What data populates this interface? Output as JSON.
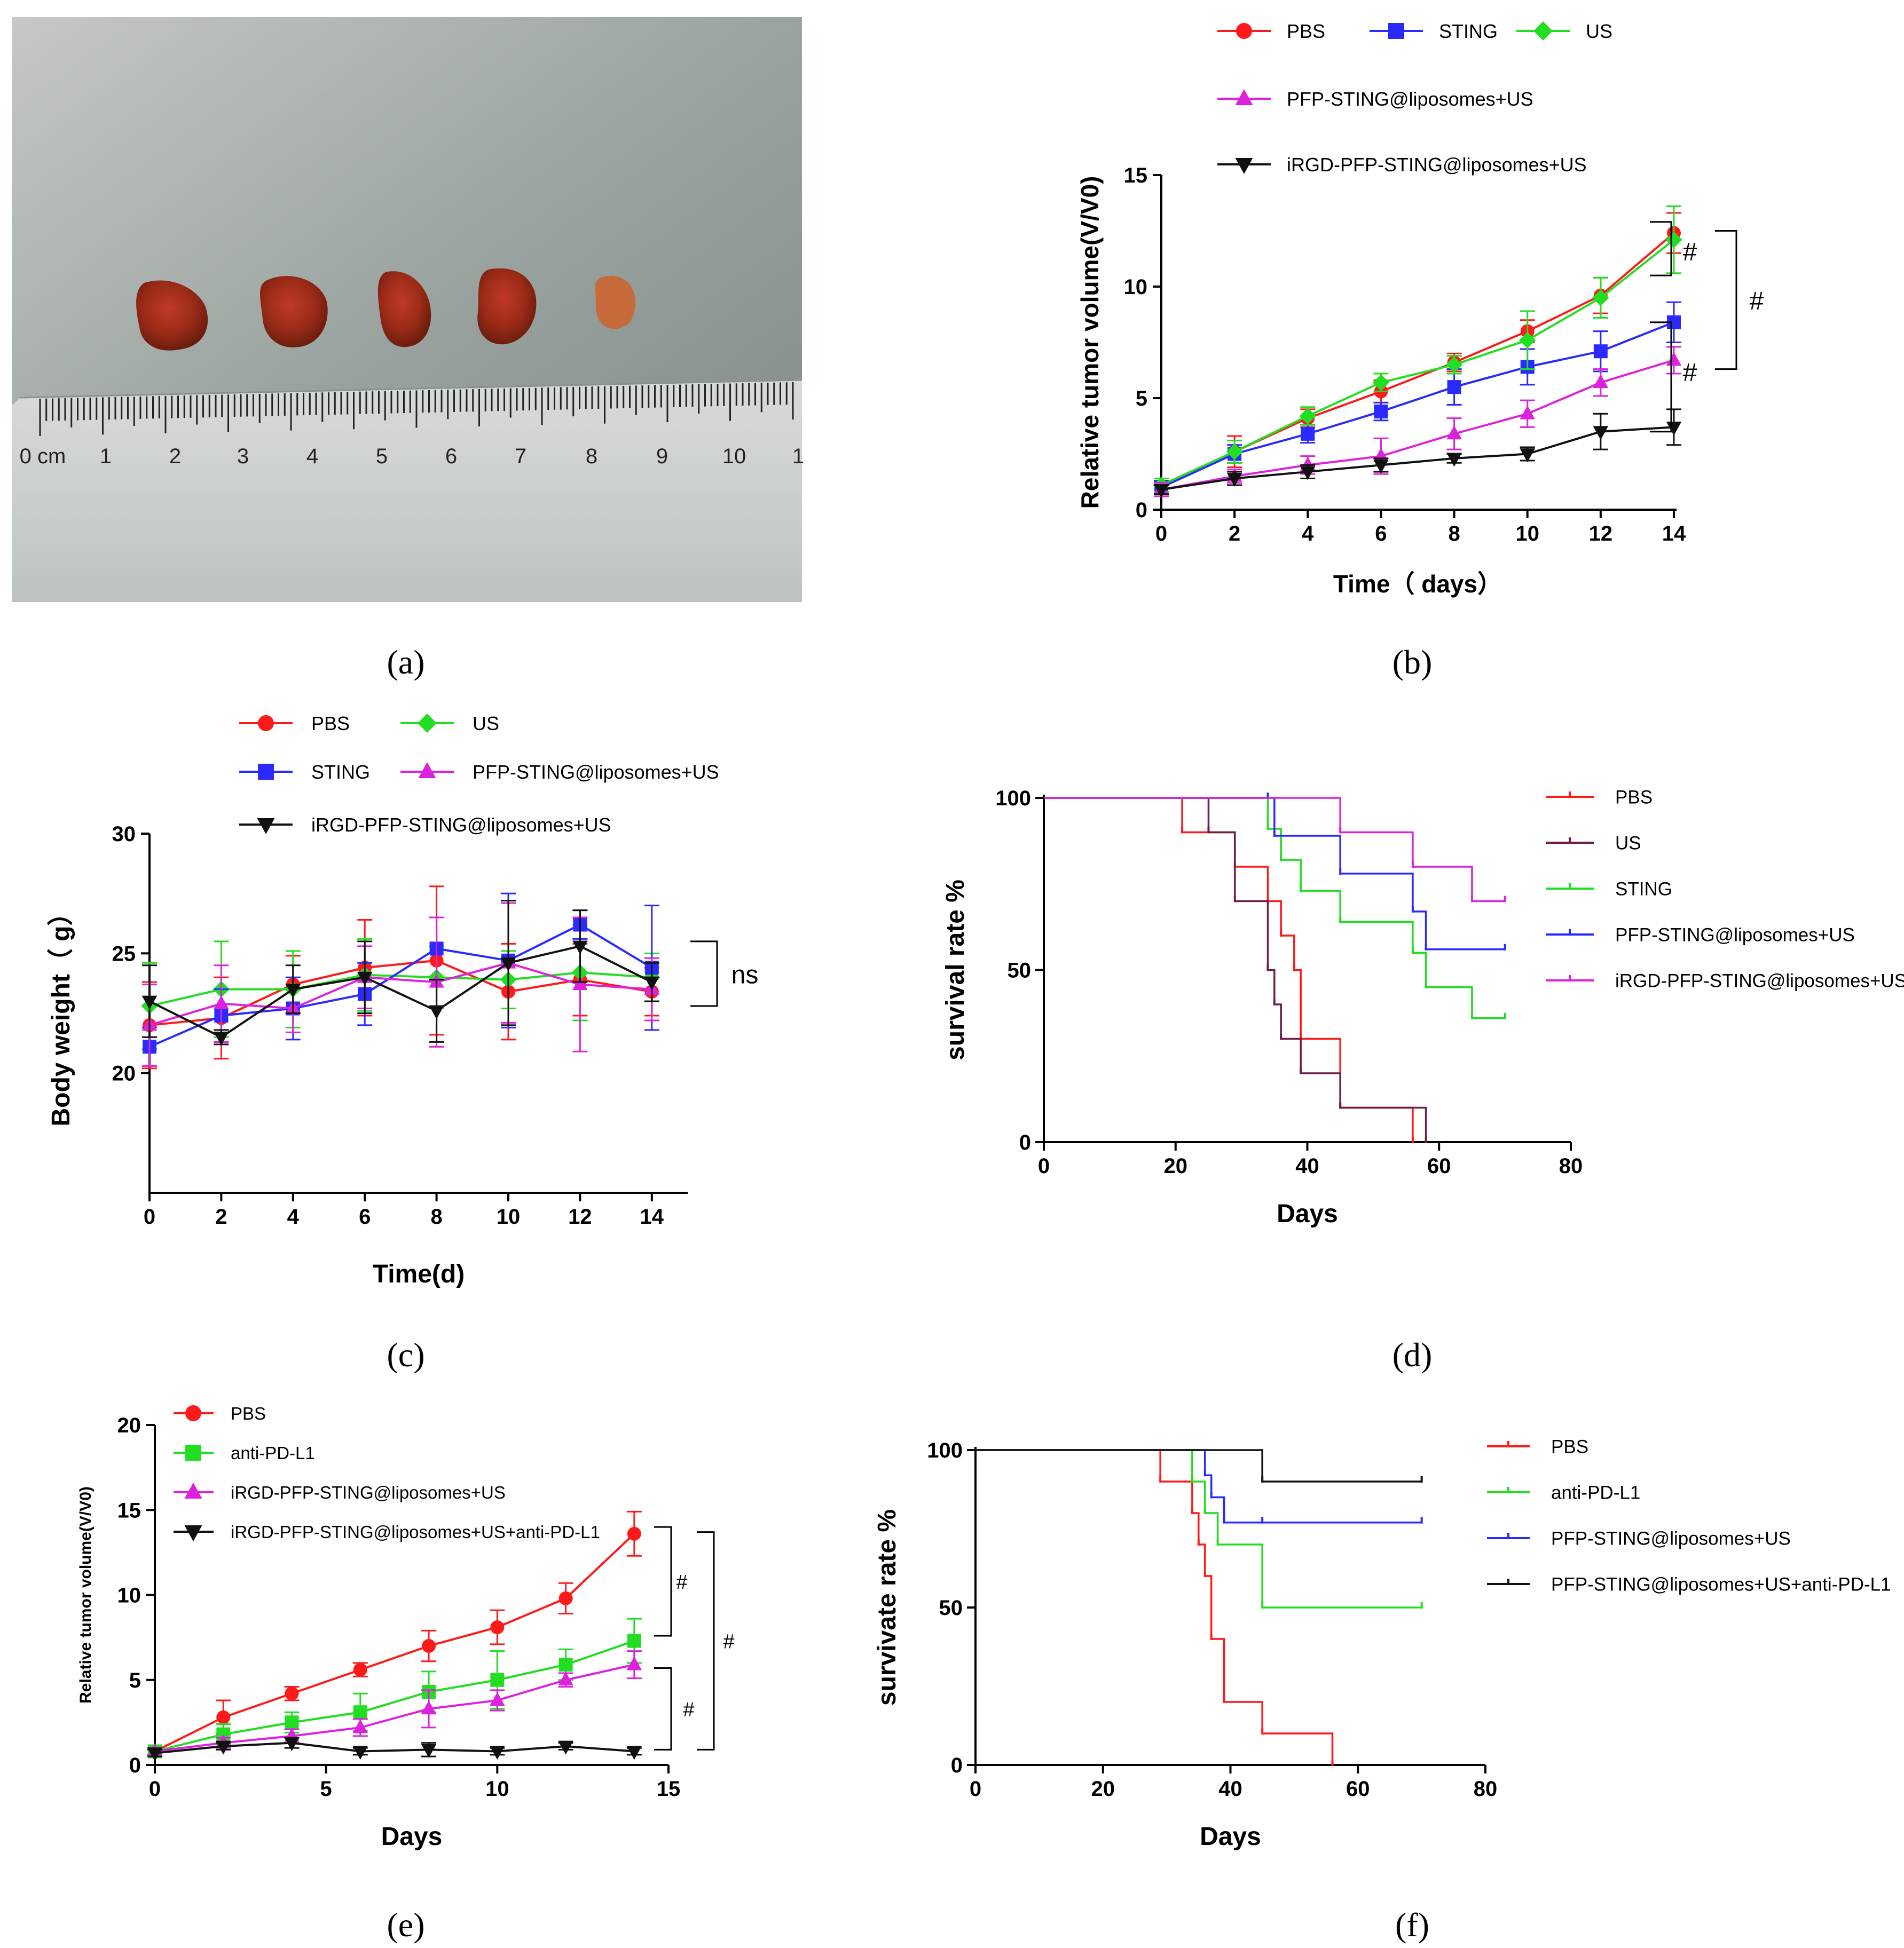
{
  "panels": {
    "a": {
      "label": "(a)"
    },
    "b": {
      "label": "(b)"
    },
    "c": {
      "label": "(c)"
    },
    "d": {
      "label": "(d)"
    },
    "e": {
      "label": "(e)"
    },
    "f": {
      "label": "(f)"
    }
  },
  "ruler_labels": [
    "0 cm",
    "1",
    "2",
    "3",
    "4",
    "5",
    "6",
    "7",
    "8",
    "9",
    "10",
    "1"
  ],
  "colors": {
    "PBS": "#ff1a1a",
    "STING": "#2a2aff",
    "US": "#22dd22",
    "PFP": "#dd22dd",
    "iRGD": "#111111",
    "maroon": "#6b1f4a"
  },
  "chart_data": [
    {
      "panel": "b",
      "type": "line",
      "xlabel": "Time（ days）",
      "ylabel": "Relative tumor volume(V/V0)",
      "xlim": [
        0,
        14
      ],
      "ylim": [
        0,
        15
      ],
      "xticks": [
        "0",
        "2",
        "4",
        "6",
        "8",
        "10",
        "12",
        "14"
      ],
      "yticks": [
        "0",
        "5",
        "10",
        "15"
      ],
      "x": [
        0,
        2,
        4,
        6,
        8,
        10,
        12,
        14
      ],
      "series": [
        {
          "name": "PBS",
          "color": "#ff1a1a",
          "marker": "circle",
          "values": [
            1.0,
            2.6,
            4.1,
            5.3,
            6.6,
            8.0,
            9.6,
            12.4
          ],
          "err": [
            0.3,
            0.7,
            0.4,
            0.5,
            0.4,
            0.5,
            0.8,
            0.9
          ]
        },
        {
          "name": "STING",
          "color": "#2a2aff",
          "marker": "square",
          "values": [
            1.0,
            2.5,
            3.4,
            4.4,
            5.5,
            6.4,
            7.1,
            8.4
          ],
          "err": [
            0.3,
            0.4,
            0.4,
            0.4,
            0.8,
            0.8,
            0.9,
            0.9
          ]
        },
        {
          "name": "US",
          "color": "#22dd22",
          "marker": "diamond",
          "values": [
            1.1,
            2.6,
            4.2,
            5.7,
            6.5,
            7.6,
            9.5,
            12.1
          ],
          "err": [
            0.3,
            0.5,
            0.4,
            0.4,
            0.4,
            1.3,
            0.9,
            1.5
          ]
        },
        {
          "name": "PFP-STING@liposomes+US",
          "color": "#dd22dd",
          "marker": "triangle",
          "values": [
            0.9,
            1.5,
            2.0,
            2.4,
            3.4,
            4.3,
            5.7,
            6.7
          ],
          "err": [
            0.3,
            0.3,
            0.4,
            0.8,
            0.7,
            0.6,
            0.6,
            0.6
          ]
        },
        {
          "name": "iRGD-PFP-STING@liposomes+US",
          "color": "#111111",
          "marker": "triangle-down",
          "values": [
            0.9,
            1.4,
            1.7,
            2.0,
            2.3,
            2.5,
            3.5,
            3.7
          ],
          "err": [
            0.2,
            0.3,
            0.3,
            0.3,
            0.2,
            0.3,
            0.8,
            0.8
          ]
        }
      ],
      "annotations": [
        "#",
        "#",
        "#"
      ]
    },
    {
      "panel": "c",
      "type": "line",
      "xlabel": "Time(d)",
      "ylabel": "Body weight（ g）",
      "xlim": [
        0,
        15
      ],
      "ylim": [
        15,
        30
      ],
      "xticks": [
        "0",
        "2",
        "4",
        "6",
        "8",
        "10",
        "12",
        "14"
      ],
      "yticks": [
        "20",
        "25",
        "30"
      ],
      "x": [
        0,
        2,
        4,
        6,
        8,
        10,
        12,
        14
      ],
      "series": [
        {
          "name": "PBS",
          "color": "#ff1a1a",
          "marker": "circle",
          "values": [
            22.0,
            22.3,
            23.7,
            24.4,
            24.7,
            23.4,
            23.9,
            23.4
          ],
          "err": [
            1.8,
            1.7,
            1.2,
            2.0,
            3.1,
            2.0,
            1.5,
            1.0
          ]
        },
        {
          "name": "US",
          "color": "#22dd22",
          "marker": "diamond",
          "values": [
            22.8,
            23.5,
            23.5,
            24.1,
            24.0,
            23.9,
            24.2,
            24.0
          ],
          "err": [
            1.8,
            2.0,
            1.6,
            1.5,
            1.3,
            1.2,
            2.0,
            1.0
          ]
        },
        {
          "name": "STING",
          "color": "#2a2aff",
          "marker": "square",
          "values": [
            21.1,
            22.4,
            22.7,
            23.3,
            25.2,
            24.7,
            26.2,
            24.4
          ],
          "err": [
            0.8,
            1.1,
            1.3,
            1.3,
            1.3,
            2.8,
            0.6,
            2.6
          ]
        },
        {
          "name": "PFP-STING@liposomes+US",
          "color": "#dd22dd",
          "marker": "triangle",
          "values": [
            22.0,
            22.9,
            22.7,
            24.0,
            23.8,
            24.6,
            23.7,
            23.5
          ],
          "err": [
            1.7,
            1.6,
            1.0,
            1.3,
            2.7,
            2.5,
            2.8,
            1.3
          ]
        },
        {
          "name": "iRGD-PFP-STING@liposomes+US",
          "color": "#111111",
          "marker": "triangle-down",
          "values": [
            23.0,
            21.5,
            23.5,
            24.0,
            22.6,
            24.6,
            25.3,
            23.8
          ],
          "err": [
            1.5,
            0.3,
            1.0,
            1.5,
            1.3,
            2.6,
            1.5,
            0.8
          ]
        }
      ],
      "annotations": [
        "ns"
      ]
    },
    {
      "panel": "d",
      "type": "line",
      "xlabel": "Days",
      "ylabel": "survival rate %",
      "xlim": [
        0,
        80
      ],
      "ylim": [
        0,
        100
      ],
      "xticks": [
        "0",
        "20",
        "40",
        "60",
        "80"
      ],
      "yticks": [
        "0",
        "50",
        "100"
      ],
      "series": [
        {
          "name": "PBS",
          "color": "#ff1a1a",
          "x": [
            0,
            21,
            29,
            34,
            36,
            38,
            39,
            45,
            56
          ],
          "values": [
            100,
            90,
            80,
            70,
            60,
            50,
            30,
            10,
            0
          ]
        },
        {
          "name": "US",
          "color": "#6b1f4a",
          "x": [
            0,
            25,
            29,
            34,
            35,
            36,
            39,
            45,
            58
          ],
          "values": [
            100,
            90,
            70,
            50,
            40,
            30,
            20,
            10,
            0
          ]
        },
        {
          "name": "STING",
          "color": "#22dd22",
          "x": [
            0,
            34,
            36,
            39,
            45,
            56,
            58,
            65,
            70
          ],
          "values": [
            100,
            91,
            82,
            73,
            64,
            55,
            45,
            36,
            36
          ]
        },
        {
          "name": "PFP-STING@liposomes+US",
          "color": "#2a2aff",
          "x": [
            0,
            34,
            35,
            45,
            56,
            58,
            70
          ],
          "values": [
            100,
            100,
            89,
            78,
            67,
            56,
            56
          ]
        },
        {
          "name": "iRGD-PFP-STING@liposomes+US",
          "color": "#dd22dd",
          "x": [
            0,
            45,
            56,
            65,
            70
          ],
          "values": [
            100,
            90,
            80,
            70,
            70
          ]
        }
      ]
    },
    {
      "panel": "e",
      "type": "line",
      "xlabel": "Days",
      "ylabel": "Relative tumor volume(V/V0)",
      "xlim": [
        0,
        15
      ],
      "ylim": [
        0,
        20
      ],
      "xticks": [
        "0",
        "5",
        "10",
        "15"
      ],
      "yticks": [
        "0",
        "5",
        "10",
        "15",
        "20"
      ],
      "x": [
        0,
        2,
        4,
        6,
        8,
        10,
        12,
        14
      ],
      "series": [
        {
          "name": "PBS",
          "color": "#ff1a1a",
          "marker": "circle",
          "values": [
            0.8,
            2.8,
            4.2,
            5.6,
            7.0,
            8.1,
            9.8,
            13.6
          ],
          "err": [
            0.2,
            1.0,
            0.4,
            0.4,
            0.9,
            1.0,
            0.9,
            1.3
          ]
        },
        {
          "name": "anti-PD-L1",
          "color": "#22dd22",
          "marker": "square",
          "values": [
            0.8,
            1.8,
            2.5,
            3.1,
            4.3,
            5.0,
            5.9,
            7.3
          ],
          "err": [
            0.2,
            0.6,
            0.6,
            1.1,
            1.2,
            1.7,
            0.9,
            1.3
          ]
        },
        {
          "name": "iRGD-PFP-STING@liposomes+US",
          "color": "#dd22dd",
          "marker": "triangle",
          "values": [
            0.8,
            1.3,
            1.7,
            2.2,
            3.3,
            3.8,
            5.0,
            5.9
          ],
          "err": [
            0.2,
            0.3,
            0.4,
            0.5,
            1.1,
            0.6,
            0.4,
            0.8
          ]
        },
        {
          "name": "iRGD-PFP-STING@liposomes+US+anti-PD-L1",
          "color": "#111111",
          "marker": "triangle-down",
          "values": [
            0.7,
            1.1,
            1.3,
            0.8,
            0.9,
            0.8,
            1.1,
            0.8
          ],
          "err": [
            0.2,
            0.2,
            0.3,
            0.2,
            0.4,
            0.2,
            0.2,
            0.2
          ]
        }
      ],
      "annotations": [
        "#",
        "#",
        "#"
      ]
    },
    {
      "panel": "f",
      "type": "line",
      "xlabel": "Days",
      "ylabel": "survivate rate %",
      "xlim": [
        0,
        80
      ],
      "ylim": [
        0,
        100
      ],
      "xticks": [
        "0",
        "20",
        "40",
        "60",
        "80"
      ],
      "yticks": [
        "0",
        "50",
        "100"
      ],
      "series": [
        {
          "name": "PBS",
          "color": "#ff1a1a",
          "x": [
            0,
            29,
            34,
            35,
            36,
            37,
            39,
            45,
            56
          ],
          "values": [
            100,
            90,
            80,
            70,
            60,
            40,
            20,
            10,
            0
          ]
        },
        {
          "name": "anti-PD-L1",
          "color": "#22dd22",
          "x": [
            0,
            34,
            36,
            38,
            45,
            70
          ],
          "values": [
            100,
            90,
            80,
            70,
            50,
            50
          ]
        },
        {
          "name": "PFP-STING@liposomes+US",
          "color": "#2a2aff",
          "x": [
            0,
            36,
            37,
            39,
            45,
            70
          ],
          "values": [
            100,
            92,
            85,
            77,
            77,
            77
          ]
        },
        {
          "name": "PFP-STING@liposomes+US+anti-PD-L1",
          "color": "#111111",
          "x": [
            0,
            45,
            70
          ],
          "values": [
            100,
            90,
            90
          ]
        }
      ]
    }
  ]
}
